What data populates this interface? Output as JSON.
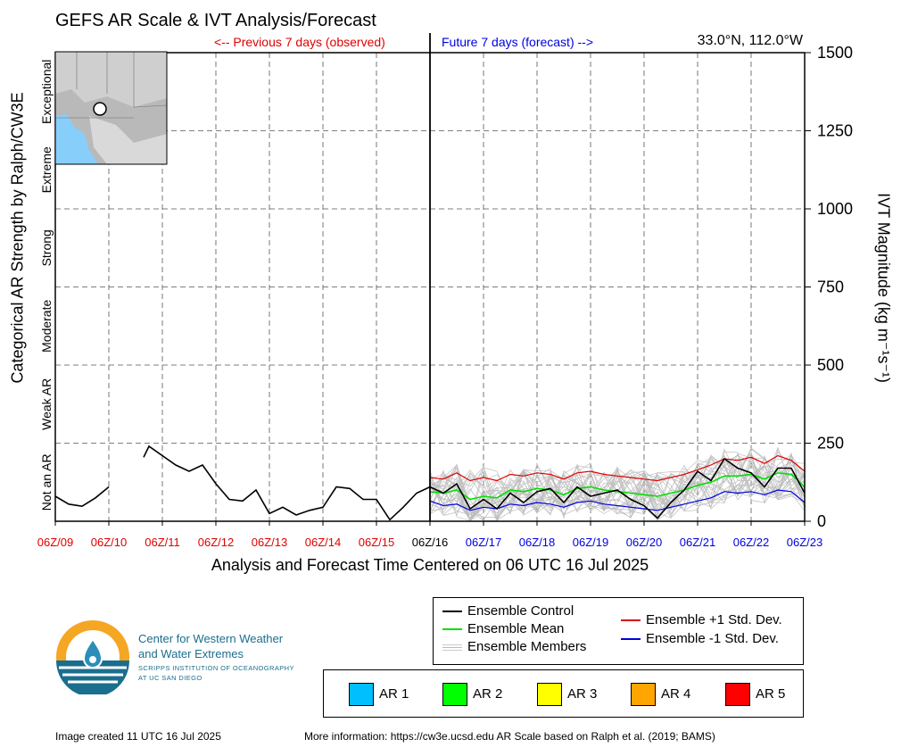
{
  "header": {
    "title": "GEFS AR Scale & IVT Analysis/Forecast",
    "prev_label": "<-- Previous 7 days (observed)",
    "next_label": "Future 7 days (forecast) -->",
    "coords": "33.0°N, 112.0°W"
  },
  "legend": {
    "control": "Ensemble Control",
    "mean": "Ensemble Mean",
    "members": "Ensemble Members",
    "plus_sd": "Ensemble +1 Std. Dev.",
    "minus_sd": "Ensemble -1 Std. Dev.",
    "colors": {
      "control": "#000000",
      "mean": "#00e000",
      "members": "#bbbbbb",
      "plus_sd": "#e00000",
      "minus_sd": "#0000e0"
    }
  },
  "ar_scale": [
    {
      "label": "AR 1",
      "color": "#00bfff"
    },
    {
      "label": "AR 2",
      "color": "#00ff00"
    },
    {
      "label": "AR 3",
      "color": "#ffff00"
    },
    {
      "label": "AR 4",
      "color": "#ffa500"
    },
    {
      "label": "AR 5",
      "color": "#ff0000"
    }
  ],
  "org": {
    "line1": "Center for Western Weather",
    "line2": "and Water Extremes",
    "line3": "SCRIPPS INSTITUTION OF OCEANOGRAPHY",
    "line4": "AT UC SAN DIEGO"
  },
  "footer": {
    "created": "Image created 11 UTC 16 Jul 2025",
    "more_info": "More information: https://cw3e.ucsd.edu AR Scale based on Ralph et al. (2019; BAMS)"
  },
  "chart_data": {
    "type": "line",
    "xlabel": "Analysis and Forecast Time Centered on 06 UTC 16 Jul 2025",
    "ylabel_left": "Categorical AR Strength by Ralph/CW3E",
    "ylabel_right": "IVT Magnitude (kg m⁻¹s⁻¹)",
    "ylim": [
      0,
      1500
    ],
    "xlim": [
      0,
      14
    ],
    "x_ticks": [
      {
        "label": "06Z/09",
        "color": "#e00000"
      },
      {
        "label": "06Z/10",
        "color": "#e00000"
      },
      {
        "label": "06Z/11",
        "color": "#e00000"
      },
      {
        "label": "06Z/12",
        "color": "#e00000"
      },
      {
        "label": "06Z/13",
        "color": "#e00000"
      },
      {
        "label": "06Z/14",
        "color": "#e00000"
      },
      {
        "label": "06Z/15",
        "color": "#e00000"
      },
      {
        "label": "06Z/16",
        "color": "#000000"
      },
      {
        "label": "06Z/17",
        "color": "#0000e0"
      },
      {
        "label": "06Z/18",
        "color": "#0000e0"
      },
      {
        "label": "06Z/19",
        "color": "#0000e0"
      },
      {
        "label": "06Z/20",
        "color": "#0000e0"
      },
      {
        "label": "06Z/21",
        "color": "#0000e0"
      },
      {
        "label": "06Z/22",
        "color": "#0000e0"
      },
      {
        "label": "06Z/23",
        "color": "#0000e0"
      }
    ],
    "y_ticks": [
      0,
      250,
      500,
      750,
      1000,
      1250,
      1500
    ],
    "categories": [
      {
        "label": "Not an AR",
        "from": 0,
        "to": 250
      },
      {
        "label": "Weak AR",
        "from": 250,
        "to": 500
      },
      {
        "label": "Moderate",
        "from": 500,
        "to": 750
      },
      {
        "label": "Strong",
        "from": 750,
        "to": 1000
      },
      {
        "label": "Extreme",
        "from": 1000,
        "to": 1250
      },
      {
        "label": "Exceptional",
        "from": 1250,
        "to": 1500
      }
    ],
    "series": [
      {
        "name": "Ensemble Control (observed)",
        "segments": [
          [
            [
              0,
              80
            ],
            [
              0.25,
              55
            ],
            [
              0.5,
              48
            ],
            [
              0.75,
              75
            ],
            [
              1.0,
              110
            ]
          ],
          [
            [
              1.65,
              205
            ],
            [
              1.75,
              240
            ],
            [
              2.0,
              210
            ],
            [
              2.25,
              180
            ],
            [
              2.5,
              160
            ],
            [
              2.75,
              180
            ],
            [
              3.0,
              120
            ],
            [
              3.25,
              70
            ],
            [
              3.5,
              65
            ],
            [
              3.75,
              100
            ],
            [
              4.0,
              25
            ],
            [
              4.25,
              45
            ],
            [
              4.5,
              20
            ],
            [
              4.75,
              35
            ],
            [
              5.0,
              45
            ],
            [
              5.25,
              110
            ],
            [
              5.5,
              105
            ],
            [
              5.75,
              70
            ],
            [
              6.0,
              70
            ],
            [
              6.25,
              5
            ],
            [
              6.5,
              45
            ],
            [
              6.75,
              90
            ],
            [
              7.0,
              110
            ]
          ]
        ]
      },
      {
        "name": "Ensemble Control",
        "x": [
          7.0,
          7.25,
          7.5,
          7.75,
          8.0,
          8.25,
          8.5,
          8.75,
          9.0,
          9.25,
          9.5,
          9.75,
          10.0,
          10.25,
          10.5,
          10.75,
          11.0,
          11.25,
          11.5,
          11.75,
          12.0,
          12.25,
          12.5,
          12.75,
          13.0,
          13.25,
          13.5,
          13.75,
          14.0
        ],
        "values": [
          110,
          90,
          120,
          40,
          70,
          40,
          90,
          60,
          95,
          105,
          60,
          110,
          80,
          90,
          100,
          70,
          50,
          10,
          60,
          100,
          160,
          130,
          200,
          170,
          155,
          110,
          170,
          170,
          90
        ]
      },
      {
        "name": "Ensemble Mean",
        "x": [
          7.0,
          7.25,
          7.5,
          7.75,
          8.0,
          8.25,
          8.5,
          8.75,
          9.0,
          9.25,
          9.5,
          9.75,
          10.0,
          10.25,
          10.5,
          10.75,
          11.0,
          11.25,
          11.5,
          11.75,
          12.0,
          12.25,
          12.5,
          12.75,
          13.0,
          13.25,
          13.5,
          13.75,
          14.0
        ],
        "values": [
          95,
          90,
          100,
          70,
          80,
          75,
          100,
          95,
          105,
          100,
          85,
          105,
          110,
          100,
          95,
          90,
          85,
          80,
          90,
          100,
          115,
          125,
          145,
          145,
          150,
          135,
          155,
          150,
          110
        ]
      },
      {
        "name": "Ensemble +1 Std. Dev.",
        "x": [
          7.0,
          7.25,
          7.5,
          7.75,
          8.0,
          8.25,
          8.5,
          8.75,
          9.0,
          9.25,
          9.5,
          9.75,
          10.0,
          10.25,
          10.5,
          10.75,
          11.0,
          11.25,
          11.5,
          11.75,
          12.0,
          12.25,
          12.5,
          12.75,
          13.0,
          13.25,
          13.5,
          13.75,
          14.0
        ],
        "values": [
          140,
          135,
          155,
          130,
          140,
          130,
          150,
          145,
          155,
          150,
          135,
          155,
          160,
          150,
          145,
          140,
          135,
          130,
          140,
          150,
          165,
          180,
          200,
          195,
          205,
          185,
          210,
          195,
          160
        ]
      },
      {
        "name": "Ensemble -1 Std. Dev.",
        "x": [
          7.0,
          7.25,
          7.5,
          7.75,
          8.0,
          8.25,
          8.5,
          8.75,
          9.0,
          9.25,
          9.5,
          9.75,
          10.0,
          10.25,
          10.5,
          10.75,
          11.0,
          11.25,
          11.5,
          11.75,
          12.0,
          12.25,
          12.5,
          12.75,
          13.0,
          13.25,
          13.5,
          13.75,
          14.0
        ],
        "values": [
          65,
          50,
          55,
          35,
          45,
          40,
          55,
          50,
          60,
          55,
          45,
          60,
          65,
          55,
          50,
          45,
          40,
          35,
          45,
          55,
          65,
          75,
          95,
          90,
          95,
          85,
          100,
          95,
          60
        ]
      }
    ]
  }
}
